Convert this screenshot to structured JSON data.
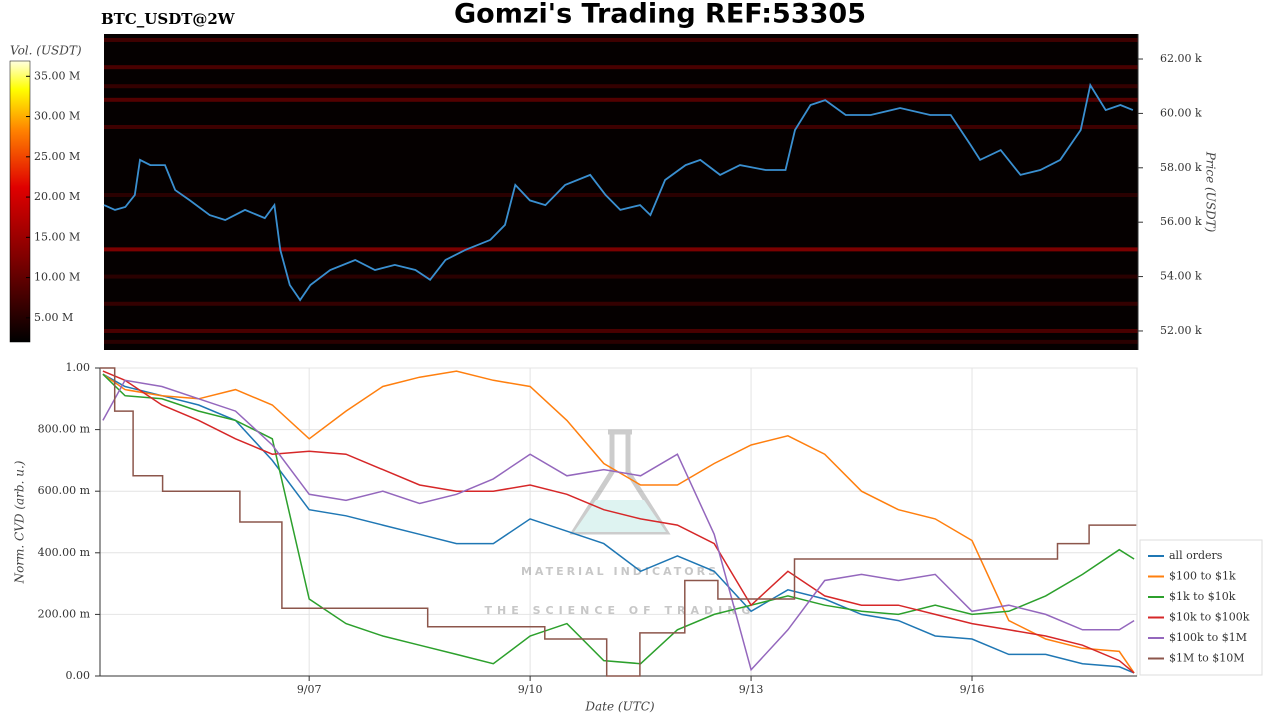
{
  "chart_data": [
    {
      "type": "heatmap-line",
      "title": "Gomzi's Trading REF:53305",
      "subtitle": "BTC_USDT@2W",
      "y_label": "Price (USDT)",
      "xlim": [
        4.16,
        18.24
      ],
      "ylim": [
        51300,
        62920
      ],
      "yticks": [
        {
          "value": 52000,
          "label": "52.00 k"
        },
        {
          "value": 54000,
          "label": "54.00 k"
        },
        {
          "value": 56000,
          "label": "56.00 k"
        },
        {
          "value": 58000,
          "label": "58.00 k"
        },
        {
          "value": 60000,
          "label": "60.00 k"
        },
        {
          "value": 62000,
          "label": "62.00 k"
        }
      ],
      "colorbar": {
        "label": "Vol. (USDT)",
        "lim": [
          2000000,
          36900000
        ],
        "ticks": [
          {
            "value": 5000000,
            "label": "5.00 M"
          },
          {
            "value": 10000000,
            "label": "10.00 M"
          },
          {
            "value": 15000000,
            "label": "15.00 M"
          },
          {
            "value": 20000000,
            "label": "20.00 M"
          },
          {
            "value": 25000000,
            "label": "25.00 M"
          },
          {
            "value": 30000000,
            "label": "30.00 M"
          },
          {
            "value": 35000000,
            "label": "35.00 M"
          }
        ]
      },
      "levels": {
        "prices": [
          62700,
          61700,
          61000,
          60500,
          59500,
          57000,
          55000,
          54000,
          53000,
          52000,
          51600
        ],
        "volumes": [
          8000000,
          9000000,
          7000000,
          10000000,
          8000000,
          6000000,
          14000000,
          6000000,
          7000000,
          9000000,
          6000000
        ]
      },
      "series": [
        {
          "color": "#3a8fd0",
          "x": [
            4.16,
            4.31,
            4.45,
            4.58,
            4.65,
            4.79,
            4.99,
            5.13,
            5.33,
            5.6,
            5.81,
            6.08,
            6.35,
            6.48,
            6.56,
            6.69,
            6.83,
            6.97,
            7.24,
            7.58,
            7.85,
            8.12,
            8.4,
            8.6,
            8.81,
            9.08,
            9.42,
            9.62,
            9.76,
            9.96,
            10.17,
            10.44,
            10.78,
            10.99,
            11.19,
            11.46,
            11.6,
            11.8,
            12.08,
            12.28,
            12.55,
            12.82,
            13.17,
            13.44,
            13.57,
            13.78,
            13.98,
            14.26,
            14.6,
            15.0,
            15.41,
            15.69,
            15.96,
            16.09,
            16.37,
            16.64,
            16.91,
            17.18,
            17.46,
            17.59,
            17.8,
            18.0,
            18.17
          ],
          "values": [
            56630,
            56450,
            56560,
            57000,
            58290,
            58100,
            58100,
            57180,
            56800,
            56260,
            56080,
            56450,
            56150,
            56630,
            54980,
            53690,
            53140,
            53690,
            54240,
            54610,
            54240,
            54430,
            54240,
            53880,
            54610,
            54980,
            55350,
            55900,
            57370,
            56800,
            56630,
            57370,
            57740,
            57000,
            56450,
            56630,
            56260,
            57550,
            58100,
            58290,
            57740,
            58100,
            57920,
            57920,
            59390,
            60310,
            60490,
            59940,
            59940,
            60200,
            59940,
            59940,
            58840,
            58290,
            58650,
            57740,
            57920,
            58290,
            59390,
            61040,
            60120,
            60310,
            60120
          ]
        }
      ]
    },
    {
      "type": "line",
      "x_label": "Date (UTC)",
      "y_label": "Norm. CVD (arb. u.)",
      "xlim": [
        4.16,
        18.24
      ],
      "xticks": [
        {
          "value": 7,
          "label": "9/07"
        },
        {
          "value": 10,
          "label": "9/10"
        },
        {
          "value": 13,
          "label": "9/13"
        },
        {
          "value": 16,
          "label": "9/16"
        }
      ],
      "ylim": [
        0,
        1
      ],
      "yticks": [
        {
          "value": 0,
          "label": "0.00"
        },
        {
          "value": 0.2,
          "label": "200.00 m"
        },
        {
          "value": 0.4,
          "label": "400.00 m"
        },
        {
          "value": 0.6,
          "label": "600.00 m"
        },
        {
          "value": 0.8,
          "label": "800.00 m"
        },
        {
          "value": 1,
          "label": "1.00"
        }
      ],
      "grid": true,
      "legend": "lower right",
      "watermark": {
        "title": "MATERIAL INDICATORS",
        "subtitle": "THE SCIENCE OF TRADING"
      },
      "x": [
        4.2,
        4.5,
        5,
        5.5,
        6,
        6.5,
        7,
        7.5,
        8,
        8.5,
        9,
        9.5,
        10,
        10.5,
        11,
        11.5,
        12,
        12.5,
        13,
        13.5,
        14,
        14.5,
        15,
        15.5,
        16,
        16.5,
        17,
        17.5,
        18,
        18.2
      ],
      "series": [
        {
          "name": "all orders",
          "color": "#1f77b4",
          "values": [
            0.98,
            0.94,
            0.91,
            0.88,
            0.83,
            0.7,
            0.54,
            0.52,
            0.49,
            0.46,
            0.43,
            0.43,
            0.51,
            0.47,
            0.43,
            0.34,
            0.39,
            0.34,
            0.21,
            0.28,
            0.25,
            0.2,
            0.18,
            0.13,
            0.12,
            0.07,
            0.07,
            0.04,
            0.03,
            0.01
          ]
        },
        {
          "name": "$100 to $1k",
          "color": "#ff7f0e",
          "values": [
            0.98,
            0.93,
            0.91,
            0.9,
            0.93,
            0.88,
            0.77,
            0.86,
            0.94,
            0.97,
            0.99,
            0.96,
            0.94,
            0.83,
            0.69,
            0.62,
            0.62,
            0.69,
            0.75,
            0.78,
            0.72,
            0.6,
            0.54,
            0.51,
            0.44,
            0.18,
            0.12,
            0.09,
            0.08,
            0.01
          ]
        },
        {
          "name": "$1k to $10k",
          "color": "#2ca02c",
          "values": [
            0.98,
            0.91,
            0.9,
            0.86,
            0.83,
            0.77,
            0.25,
            0.17,
            0.13,
            0.1,
            0.07,
            0.04,
            0.13,
            0.17,
            0.05,
            0.04,
            0.15,
            0.2,
            0.23,
            0.26,
            0.23,
            0.21,
            0.2,
            0.23,
            0.2,
            0.21,
            0.26,
            0.33,
            0.41,
            0.38
          ]
        },
        {
          "name": "$10k to $100k",
          "color": "#d62728",
          "values": [
            0.99,
            0.96,
            0.88,
            0.83,
            0.77,
            0.72,
            0.73,
            0.72,
            0.67,
            0.62,
            0.6,
            0.6,
            0.62,
            0.59,
            0.54,
            0.51,
            0.49,
            0.43,
            0.23,
            0.34,
            0.26,
            0.23,
            0.23,
            0.2,
            0.17,
            0.15,
            0.13,
            0.1,
            0.05,
            0.01
          ]
        },
        {
          "name": "$100k to $1M",
          "color": "#9467bd",
          "values": [
            0.83,
            0.96,
            0.94,
            0.9,
            0.86,
            0.75,
            0.59,
            0.57,
            0.6,
            0.56,
            0.59,
            0.64,
            0.72,
            0.65,
            0.67,
            0.65,
            0.72,
            0.46,
            0.02,
            0.15,
            0.31,
            0.33,
            0.31,
            0.33,
            0.21,
            0.23,
            0.2,
            0.15,
            0.15,
            0.18
          ]
        },
        {
          "name": "$1M to $10M",
          "color": "#8c564b",
          "x": [
            4.16,
            4.36,
            4.36,
            4.61,
            4.61,
            5.01,
            5.01,
            6.06,
            6.06,
            6.63,
            6.63,
            8.61,
            8.61,
            10.2,
            10.2,
            11.04,
            11.04,
            11.49,
            11.49,
            12.1,
            12.1,
            12.55,
            12.55,
            13.59,
            13.59,
            17.16,
            17.16,
            17.59,
            17.59,
            18.23
          ],
          "values": [
            1,
            1,
            0.86,
            0.86,
            0.65,
            0.65,
            0.6,
            0.6,
            0.5,
            0.5,
            0.22,
            0.22,
            0.16,
            0.16,
            0.12,
            0.12,
            0,
            0,
            0.14,
            0.14,
            0.31,
            0.31,
            0.25,
            0.25,
            0.38,
            0.38,
            0.43,
            0.43,
            0.49,
            0.49
          ]
        }
      ]
    }
  ]
}
